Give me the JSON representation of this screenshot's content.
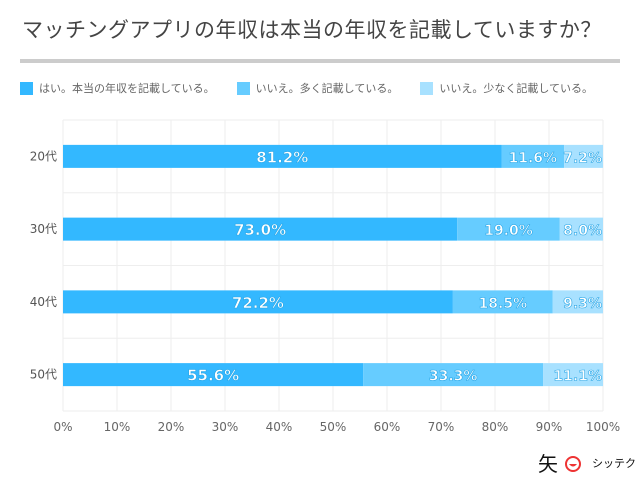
{
  "chart_data": {
    "type": "bar",
    "orientation": "horizontal",
    "stacked": true,
    "title": "マッチングアプリの年収は本当の年収を記載していますか？",
    "categories": [
      "20代",
      "30代",
      "40代",
      "50代"
    ],
    "series": [
      {
        "name": "はい。本当の年収を記載している。",
        "color": "#33b8ff",
        "values": [
          81.2,
          73.0,
          72.2,
          55.6
        ],
        "labels": [
          "81.2%",
          "73.0%",
          "72.2%",
          "55.6%"
        ]
      },
      {
        "name": "いいえ。多く記載している。",
        "color": "#66ccff",
        "values": [
          11.6,
          19.0,
          18.5,
          33.3
        ],
        "labels": [
          "11.6%",
          "19.0%",
          "18.5%",
          "33.3%"
        ]
      },
      {
        "name": "いいえ。少なく記載している。",
        "color": "#a8e1ff",
        "values": [
          7.2,
          8.0,
          9.3,
          11.1
        ],
        "labels": [
          "7.2%",
          "8.0%",
          "9.3%",
          "11.1%"
        ]
      }
    ],
    "xlim": [
      0,
      100
    ],
    "xticks": [
      "0%",
      "10%",
      "20%",
      "30%",
      "40%",
      "50%",
      "60%",
      "70%",
      "80%",
      "90%",
      "100%"
    ],
    "grid": true,
    "legend": "top"
  },
  "logo": {
    "mark": "矢",
    "text": "シッテク"
  }
}
